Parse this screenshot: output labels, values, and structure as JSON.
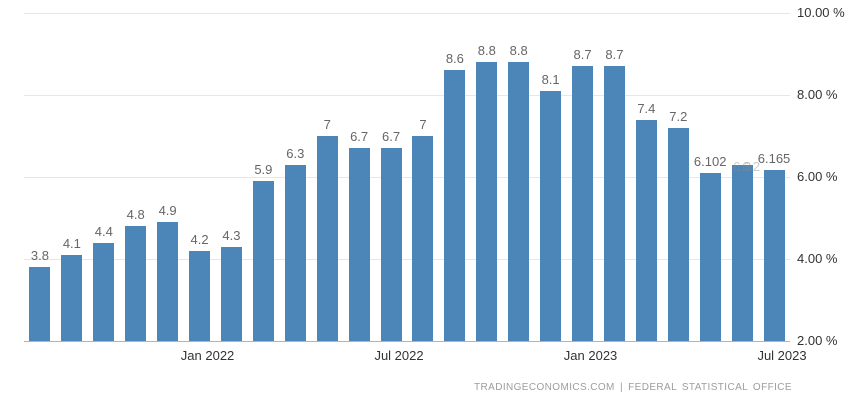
{
  "chart_data": {
    "type": "bar",
    "title": "",
    "xlabel": "",
    "ylabel": "",
    "ylim": [
      2,
      10
    ],
    "grid": true,
    "bar_color": "#4c86b8",
    "y_ticks": [
      {
        "value": 10,
        "label": "10.00 %"
      },
      {
        "value": 8,
        "label": "8.00 %"
      },
      {
        "value": 6,
        "label": "6.00 %"
      },
      {
        "value": 4,
        "label": "4.00 %"
      },
      {
        "value": 2,
        "label": "2.00 %"
      }
    ],
    "x_ticks": [
      {
        "index": 5,
        "label": "Jan 2022"
      },
      {
        "index": 11,
        "label": "Jul 2022"
      },
      {
        "index": 17,
        "label": "Jan 2023"
      },
      {
        "index": 23,
        "label": "Jul 2023"
      }
    ],
    "bars": [
      {
        "value": 3.8,
        "label": "3.8"
      },
      {
        "value": 4.1,
        "label": "4.1"
      },
      {
        "value": 4.4,
        "label": "4.4"
      },
      {
        "value": 4.8,
        "label": "4.8"
      },
      {
        "value": 4.9,
        "label": "4.9"
      },
      {
        "value": 4.2,
        "label": "4.2"
      },
      {
        "value": 4.3,
        "label": "4.3"
      },
      {
        "value": 5.9,
        "label": "5.9"
      },
      {
        "value": 6.3,
        "label": "6.3"
      },
      {
        "value": 7,
        "label": "7"
      },
      {
        "value": 6.7,
        "label": "6.7"
      },
      {
        "value": 6.7,
        "label": "6.7"
      },
      {
        "value": 7,
        "label": "7"
      },
      {
        "value": 8.6,
        "label": "8.6"
      },
      {
        "value": 8.8,
        "label": "8.8"
      },
      {
        "value": 8.8,
        "label": "8.8"
      },
      {
        "value": 8.1,
        "label": "8.1"
      },
      {
        "value": 8.7,
        "label": "8.7"
      },
      {
        "value": 8.7,
        "label": "8.7"
      },
      {
        "value": 7.4,
        "label": "7.4"
      },
      {
        "value": 7.2,
        "label": "7.2"
      },
      {
        "value": 6.102,
        "label": "6.102"
      },
      {
        "value": 6.3,
        "label": "6.3",
        "label2": "6.2",
        "faded": true
      },
      {
        "value": 6.165,
        "label": "6.165"
      }
    ]
  },
  "footer": {
    "source": "TRADINGECONOMICS.COM | FEDERAL STATISTICAL OFFICE"
  }
}
